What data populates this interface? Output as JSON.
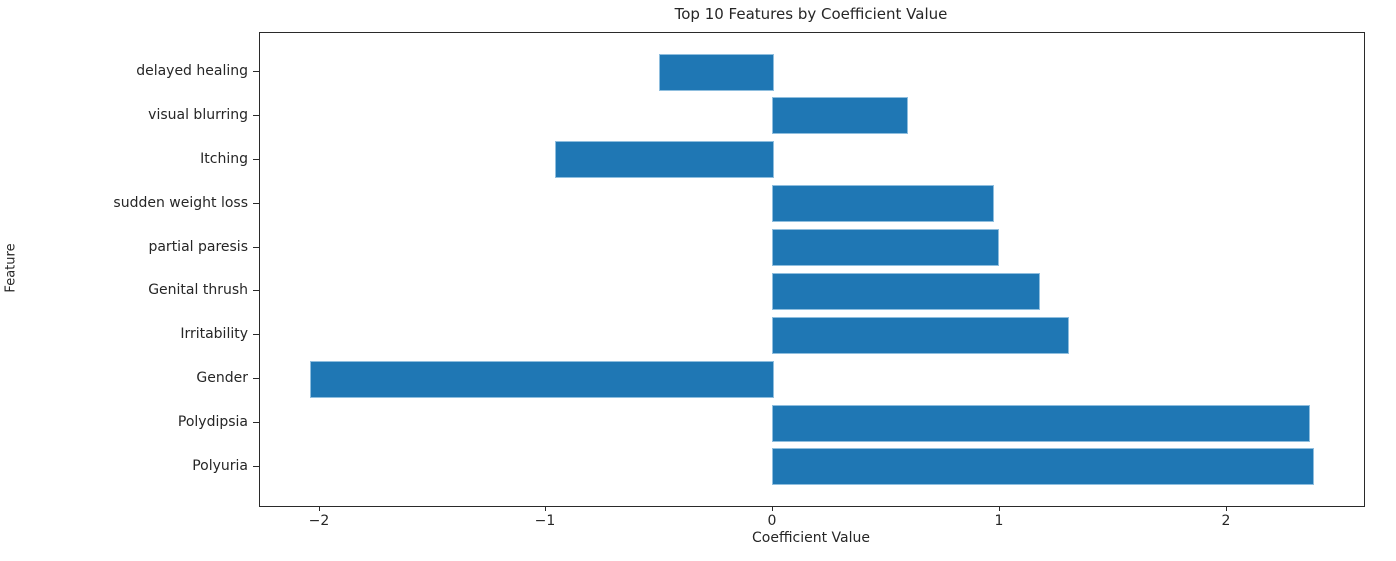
{
  "chart_data": {
    "type": "bar",
    "orientation": "horizontal",
    "title": "Top 10 Features by Coefficient Value",
    "xlabel": "Coefficient Value",
    "ylabel": "Feature",
    "categories_top_to_bottom": [
      "delayed healing",
      "visual blurring",
      "Itching",
      "sudden weight loss",
      "partial paresis",
      "Genital thrush",
      "Irritability",
      "Gender",
      "Polydipsia",
      "Polyuria"
    ],
    "values_top_to_bottom": [
      -0.5,
      0.59,
      -0.96,
      0.97,
      0.99,
      1.17,
      1.3,
      -2.04,
      2.36,
      2.38
    ],
    "xticks": [
      -2,
      -1,
      0,
      1,
      2
    ],
    "xtick_labels": [
      "−2",
      "−1",
      "0",
      "1",
      "2"
    ],
    "xlim": [
      -2.263,
      2.604
    ],
    "ylim": [
      -0.89,
      9.89
    ],
    "bar_height_units": 0.8,
    "bar_color": "#1f77b4",
    "background_color": "#ffffff",
    "grid": false,
    "legend": null
  }
}
